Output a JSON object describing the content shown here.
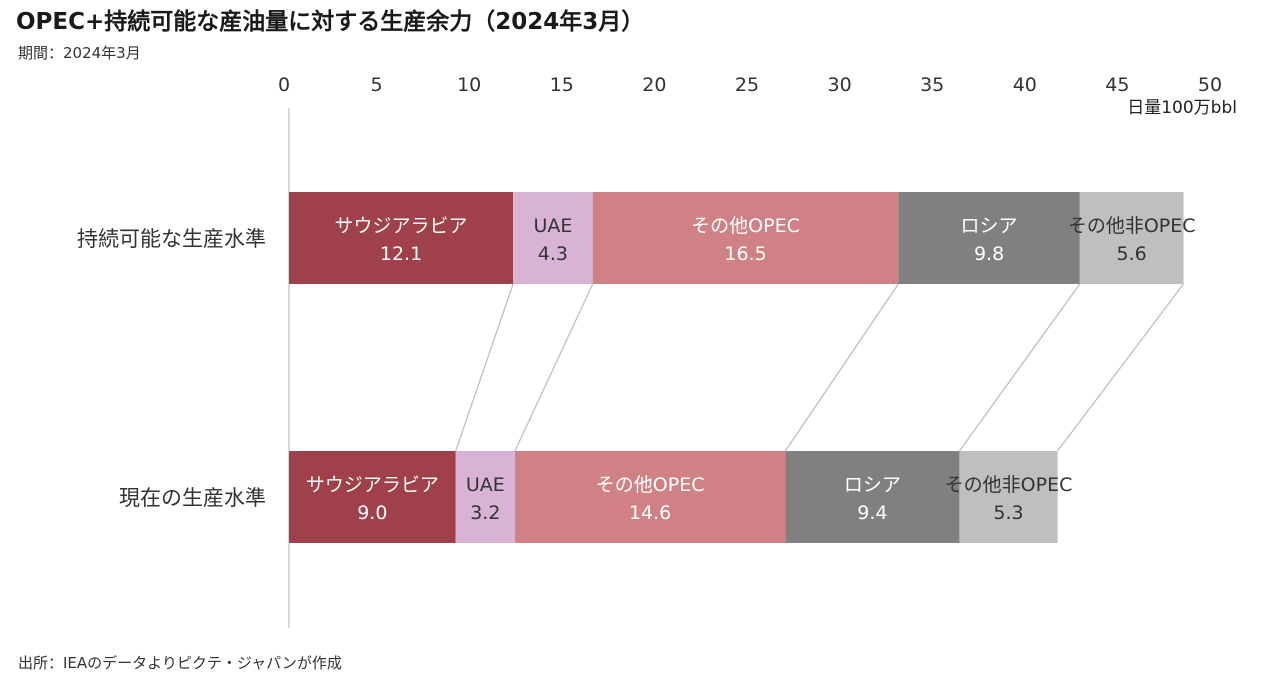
{
  "title": "OPEC+持続可能な産油量に対する生産余力（2024年3月）",
  "period": "期間：2024年3月",
  "source": "出所：IEAのデータよりピクテ・ジャパンが作成",
  "chart_data": {
    "type": "bar",
    "orientation": "horizontal",
    "stacked": true,
    "unit_label": "日量100万bbl",
    "xlim": [
      0,
      50
    ],
    "x_ticks": [
      "0",
      "5",
      "10",
      "15",
      "20",
      "25",
      "30",
      "35",
      "40",
      "45",
      "50"
    ],
    "categories": [
      "持続可能な生産水準",
      "現在の生産水準"
    ],
    "series": [
      {
        "name": "サウジアラビア",
        "values": [
          12.1,
          9.0
        ],
        "value_labels": [
          "12.1",
          "9.0"
        ],
        "color": "#a0404a",
        "text_color": "#ffffff"
      },
      {
        "name": "UAE",
        "values": [
          4.3,
          3.2
        ],
        "value_labels": [
          "4.3",
          "3.2"
        ],
        "color": "#d9b3d6",
        "text_color": "#333333"
      },
      {
        "name": "その他OPEC",
        "values": [
          16.5,
          14.6
        ],
        "value_labels": [
          "16.5",
          "14.6"
        ],
        "color": "#cf8186",
        "text_color": "#ffffff"
      },
      {
        "name": "ロシア",
        "values": [
          9.8,
          9.4
        ],
        "value_labels": [
          "9.8",
          "9.4"
        ],
        "color": "#808080",
        "text_color": "#ffffff"
      },
      {
        "name": "その他非OPEC",
        "values": [
          5.6,
          5.3
        ],
        "value_labels": [
          "5.6",
          "5.3"
        ],
        "color": "#bfbfbf",
        "text_color": "#333333"
      }
    ],
    "connector_lines": true,
    "grid": false,
    "legend": "none"
  }
}
